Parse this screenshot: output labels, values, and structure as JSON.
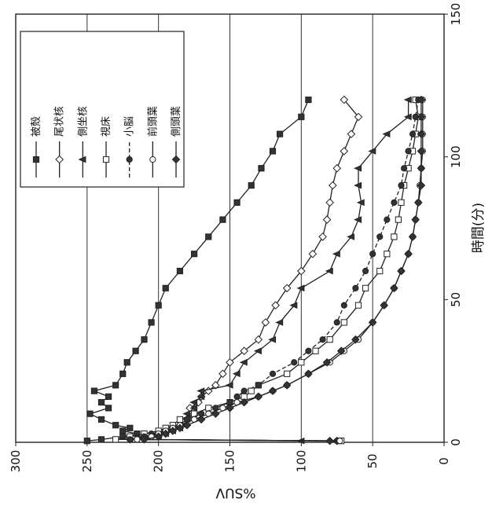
{
  "chart_data": {
    "type": "line",
    "rotated": "90deg-clockwise",
    "xlabel": "時間(分)",
    "ylabel": "%SUV",
    "xlim": [
      0,
      150
    ],
    "ylim": [
      0,
      300
    ],
    "xticks": [
      "0",
      "50",
      "100",
      "150"
    ],
    "yticks": [
      "0",
      "50",
      "100",
      "150",
      "200",
      "250",
      "300"
    ],
    "grid": "horizontal",
    "legend_position": "top-left",
    "series": [
      {
        "name": "被殻",
        "marker": "square-filled",
        "x": [
          0.5,
          1,
          2,
          3,
          4,
          5,
          6,
          8,
          10,
          12,
          14,
          16,
          18,
          20,
          24,
          28,
          32,
          36,
          42,
          48,
          54,
          60,
          66,
          72,
          78,
          84,
          90,
          96,
          102,
          108,
          114,
          120
        ],
        "y": [
          250,
          240,
          225,
          215,
          225,
          220,
          230,
          240,
          248,
          235,
          240,
          235,
          245,
          230,
          225,
          222,
          216,
          210,
          205,
          200,
          195,
          185,
          175,
          165,
          155,
          145,
          135,
          128,
          120,
          115,
          100,
          95
        ]
      },
      {
        "name": "尾状核",
        "marker": "diamond-open",
        "x": [
          0.5,
          1,
          2,
          3,
          4,
          5,
          6,
          8,
          10,
          12,
          14,
          16,
          18,
          20,
          24,
          28,
          32,
          36,
          42,
          48,
          54,
          60,
          66,
          72,
          78,
          84,
          90,
          96,
          102,
          108,
          114,
          120
        ],
        "y": [
          75,
          220,
          210,
          200,
          195,
          190,
          185,
          180,
          175,
          178,
          172,
          170,
          165,
          160,
          155,
          150,
          140,
          130,
          125,
          118,
          110,
          100,
          92,
          85,
          82,
          80,
          78,
          75,
          70,
          65,
          60,
          70
        ]
      },
      {
        "name": "側坐核",
        "marker": "triangle-filled",
        "x": [
          0.5,
          1,
          2,
          3,
          4,
          5,
          6,
          8,
          10,
          12,
          14,
          16,
          18,
          20,
          24,
          28,
          32,
          36,
          42,
          48,
          54,
          60,
          66,
          72,
          78,
          84,
          90,
          96,
          102,
          108,
          114,
          120
        ],
        "y": [
          100,
          220,
          200,
          195,
          190,
          185,
          182,
          180,
          180,
          175,
          175,
          170,
          170,
          150,
          145,
          140,
          130,
          120,
          115,
          105,
          100,
          80,
          75,
          65,
          60,
          58,
          60,
          60,
          50,
          40,
          25,
          25
        ]
      },
      {
        "name": "視床",
        "marker": "square-open",
        "x": [
          0.5,
          1,
          2,
          3,
          4,
          5,
          6,
          8,
          10,
          12,
          14,
          16,
          18,
          20,
          24,
          28,
          32,
          36,
          42,
          48,
          54,
          60,
          66,
          72,
          78,
          84,
          90,
          96,
          102,
          108,
          114,
          120
        ],
        "y": [
          72,
          230,
          220,
          210,
          200,
          195,
          190,
          185,
          175,
          165,
          150,
          140,
          135,
          130,
          110,
          100,
          90,
          80,
          70,
          60,
          55,
          45,
          40,
          35,
          32,
          30,
          28,
          25,
          22,
          20,
          18,
          20
        ]
      },
      {
        "name": "小脳",
        "marker": "circle-filled-dashed",
        "x": [
          0.5,
          1,
          2,
          3,
          4,
          5,
          6,
          8,
          10,
          12,
          14,
          16,
          18,
          20,
          24,
          28,
          32,
          36,
          42,
          48,
          54,
          60,
          66,
          72,
          78,
          84,
          90,
          96,
          102,
          108,
          114,
          120
        ],
        "y": [
          75,
          220,
          210,
          205,
          195,
          190,
          185,
          180,
          170,
          160,
          150,
          145,
          140,
          130,
          120,
          105,
          95,
          85,
          75,
          70,
          62,
          55,
          50,
          45,
          40,
          35,
          30,
          28,
          25,
          22,
          20,
          18
        ]
      },
      {
        "name": "前頭葉",
        "marker": "circle-open",
        "x": [
          0.5,
          1,
          2,
          3,
          4,
          5,
          6,
          8,
          10,
          12,
          14,
          16,
          18,
          20,
          24,
          28,
          32,
          36,
          42,
          48,
          54,
          60,
          66,
          72,
          78,
          84,
          90,
          96,
          102,
          108,
          114,
          120
        ],
        "y": [
          73,
          215,
          205,
          200,
          195,
          190,
          185,
          175,
          165,
          155,
          145,
          130,
          120,
          110,
          95,
          80,
          70,
          60,
          50,
          42,
          35,
          30,
          25,
          22,
          20,
          18,
          17,
          16,
          15,
          15,
          15,
          15
        ]
      },
      {
        "name": "側頭葉",
        "marker": "diamond-filled",
        "x": [
          0.5,
          1,
          2,
          3,
          4,
          5,
          6,
          8,
          10,
          12,
          14,
          16,
          18,
          20,
          24,
          28,
          32,
          36,
          42,
          48,
          54,
          60,
          66,
          72,
          78,
          84,
          90,
          96,
          102,
          108,
          114,
          120
        ],
        "y": [
          80,
          210,
          200,
          195,
          190,
          185,
          180,
          170,
          160,
          150,
          140,
          130,
          120,
          110,
          95,
          82,
          72,
          62,
          50,
          42,
          35,
          30,
          25,
          22,
          20,
          18,
          16,
          16,
          16,
          16,
          16,
          16
        ]
      }
    ]
  }
}
